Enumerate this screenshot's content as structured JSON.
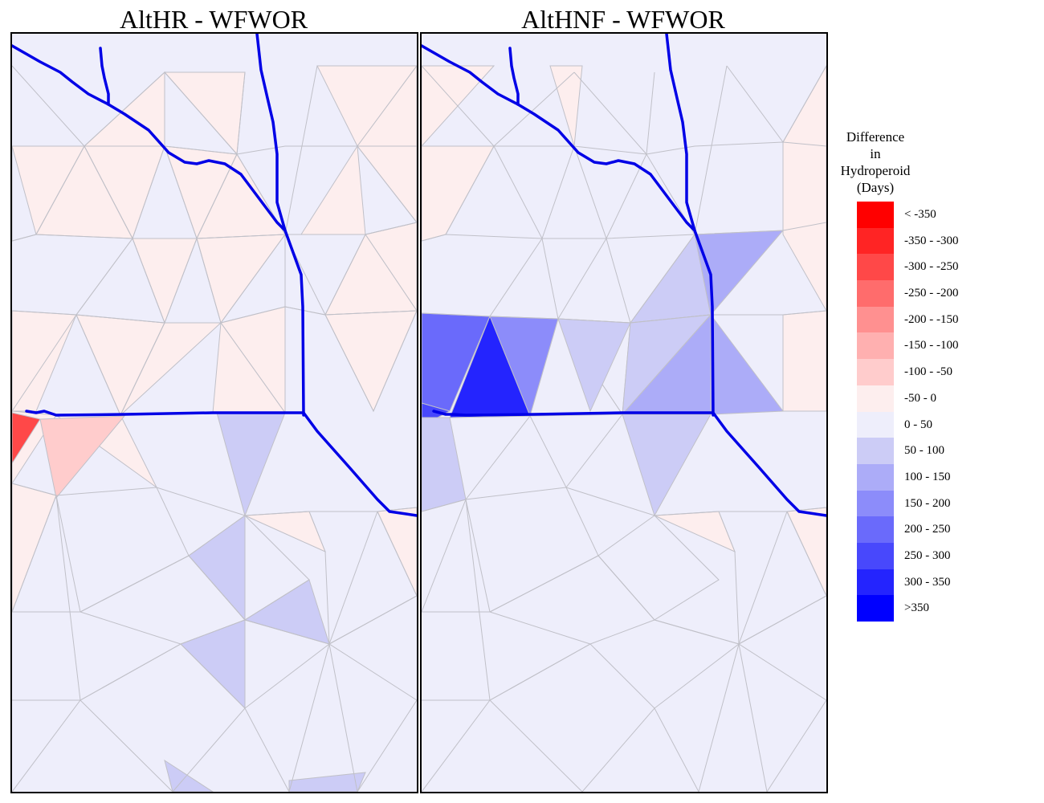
{
  "panels": [
    {
      "title": "AltHR - WFWOR"
    },
    {
      "title": "AltHNF - WFWOR"
    }
  ],
  "legend": {
    "title_lines": [
      "Difference",
      "in",
      "Hydroperoid",
      "(Days)"
    ],
    "classes": [
      {
        "label": "< -350",
        "color": "#ff0000"
      },
      {
        "label": "-350 - -300",
        "color": "#ff2424"
      },
      {
        "label": "-300 - -250",
        "color": "#ff4848"
      },
      {
        "label": "-250 - -200",
        "color": "#ff6c6c"
      },
      {
        "label": "-200 - -150",
        "color": "#ff9090"
      },
      {
        "label": "-150 - -100",
        "color": "#ffb0b0"
      },
      {
        "label": "-100 - -50",
        "color": "#ffcccc"
      },
      {
        "label": "-50 - 0",
        "color": "#fdeeee"
      },
      {
        "label": "0 - 50",
        "color": "#eeeefb"
      },
      {
        "label": "50 - 100",
        "color": "#ccccf6"
      },
      {
        "label": "100 - 150",
        "color": "#acacf8"
      },
      {
        "label": "150 - 200",
        "color": "#8c8cfa"
      },
      {
        "label": "200 - 250",
        "color": "#6a6afb"
      },
      {
        "label": "250 - 300",
        "color": "#4848fc"
      },
      {
        "label": "300 - 350",
        "color": "#2424fe"
      },
      {
        "label": ">350",
        "color": "#0000ff"
      }
    ]
  },
  "colors": {
    "canal": "#0000e6",
    "mesh_line": "#c0c0c8",
    "frame": "#000000"
  }
}
